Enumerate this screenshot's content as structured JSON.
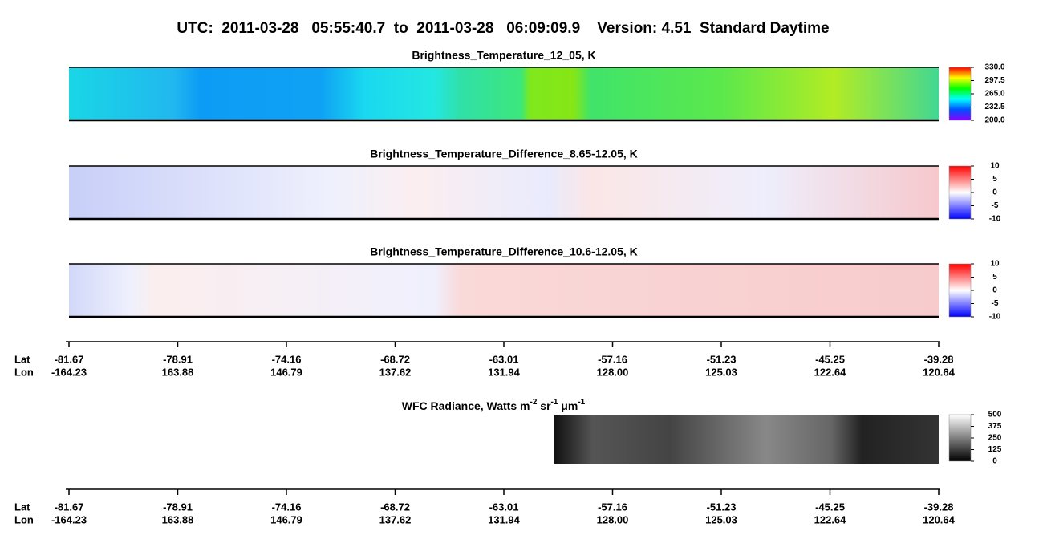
{
  "title": "UTC:  2011-03-28   05:55:40.7  to  2011-03-28   06:09:09.9    Version: 4.51  Standard Daytime",
  "panels": [
    {
      "title": "Brightness_Temperature_12_05, K",
      "colorbar": [
        "330.0",
        "297.5",
        "265.0",
        "232.5",
        "200.0"
      ]
    },
    {
      "title": "Brightness_Temperature_Difference_8.65-12.05, K",
      "colorbar": [
        "10",
        "5",
        "0",
        "-5",
        "-10"
      ]
    },
    {
      "title": "Brightness_Temperature_Difference_10.6-12.05, K",
      "colorbar": [
        "10",
        "5",
        "0",
        "-5",
        "-10"
      ]
    }
  ],
  "axes": [
    {
      "lat_label": "Lat",
      "lon_label": "Lon",
      "lat": [
        "-81.67",
        "-78.91",
        "-74.16",
        "-68.72",
        "-63.01",
        "-57.16",
        "-51.23",
        "-45.25",
        "-39.28"
      ],
      "lon": [
        "-164.23",
        "163.88",
        "146.79",
        "137.62",
        "131.94",
        "128.00",
        "125.03",
        "122.64",
        "120.64"
      ]
    },
    {
      "lat_label": "Lat",
      "lon_label": "Lon",
      "lat": [
        "-81.67",
        "-78.91",
        "-74.16",
        "-68.72",
        "-63.01",
        "-57.16",
        "-51.23",
        "-45.25",
        "-39.28"
      ],
      "lon": [
        "-164.23",
        "163.88",
        "146.79",
        "137.62",
        "131.94",
        "128.00",
        "125.03",
        "122.64",
        "120.64"
      ]
    }
  ],
  "wfc": {
    "title_parts": [
      "WFC Radiance, Watts m",
      "-2",
      " sr",
      "-1",
      " μm",
      "-1"
    ],
    "colorbar": [
      "500",
      "375",
      "250",
      "125",
      "0"
    ]
  }
}
